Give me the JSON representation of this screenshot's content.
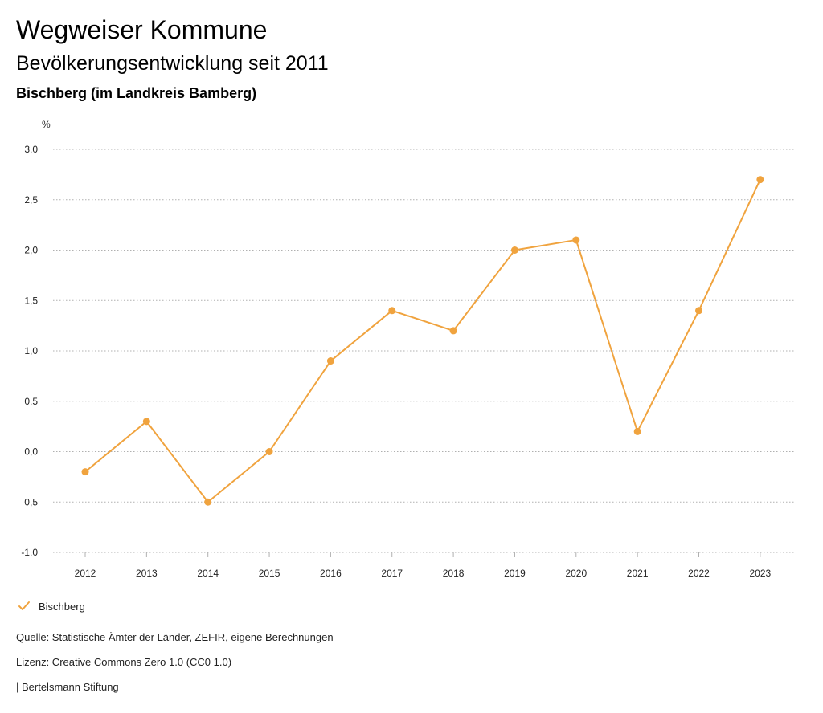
{
  "header": {
    "title": "Wegweiser Kommune",
    "subtitle": "Bevölkerungsentwicklung seit 2011",
    "region": "Bischberg (im Landkreis Bamberg)"
  },
  "colors": {
    "series": "#f0a33e",
    "grid": "#b0b0b0"
  },
  "chart_data": {
    "type": "line",
    "ylabel": "%",
    "ylim": [
      -1.0,
      3.0
    ],
    "yticks": [
      -1.0,
      -0.5,
      0.0,
      0.5,
      1.0,
      1.5,
      2.0,
      2.5,
      3.0
    ],
    "ytick_labels": [
      "-1,0",
      "-0,5",
      "0,0",
      "0,5",
      "1,0",
      "1,5",
      "2,0",
      "2,5",
      "3,0"
    ],
    "categories": [
      "2012",
      "2013",
      "2014",
      "2015",
      "2016",
      "2017",
      "2018",
      "2019",
      "2020",
      "2021",
      "2022",
      "2023"
    ],
    "series": [
      {
        "name": "Bischberg",
        "values": [
          -0.2,
          0.3,
          -0.5,
          0.0,
          0.9,
          1.4,
          1.2,
          2.0,
          2.1,
          0.2,
          1.4,
          2.7
        ]
      }
    ],
    "grid": true,
    "grid_style": "dotted-horizontal",
    "legend_position": "bottom-left"
  },
  "legend": {
    "label": "Bischberg",
    "icon": "check-icon"
  },
  "footer": {
    "source": "Quelle: Statistische Ämter der Länder, ZEFIR, eigene Berechnungen",
    "license": "Lizenz: Creative Commons Zero 1.0 (CC0 1.0)",
    "publisher": "| Bertelsmann Stiftung"
  }
}
